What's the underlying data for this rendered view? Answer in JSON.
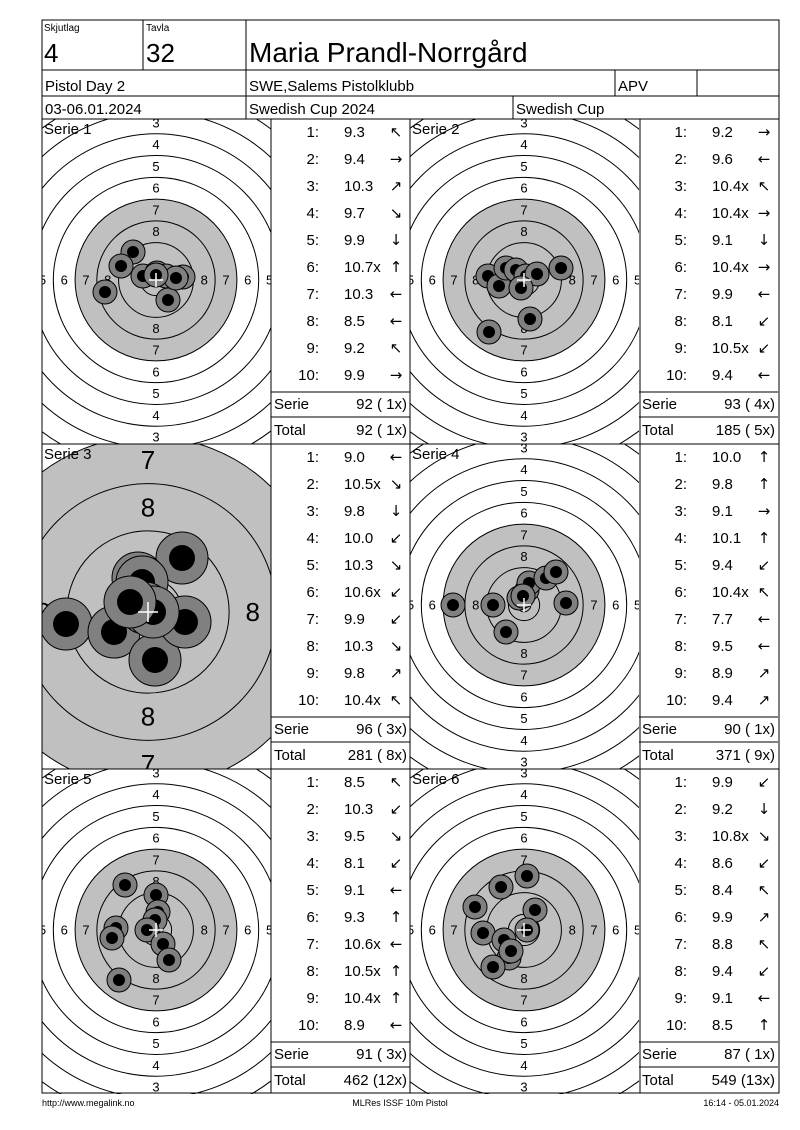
{
  "header": {
    "skjutlag_label": "Skjutlag",
    "skjutlag": "4",
    "tavla_label": "Tavla",
    "tavla": "32",
    "name": "Maria Prandl-Norrgård",
    "event": "Pistol Day 2",
    "club": "SWE,Salems Pistolklubb",
    "class": "APV",
    "date": "03-06.01.2024",
    "competition": "Swedish Cup 2024",
    "competition_short": "Swedish Cup"
  },
  "ring_labels": [
    "3",
    "4",
    "5",
    "6",
    "7",
    "8"
  ],
  "series": [
    {
      "label": "Serie 1",
      "shots": [
        {
          "no": "1:",
          "score": "9.3",
          "dir": "↖"
        },
        {
          "no": "2:",
          "score": "9.4",
          "dir": "→"
        },
        {
          "no": "3:",
          "score": "10.3",
          "dir": "↗"
        },
        {
          "no": "4:",
          "score": "9.7",
          "dir": "↘"
        },
        {
          "no": "5:",
          "score": "9.9",
          "dir": "↓"
        },
        {
          "no": "6:",
          "score": "10.7x",
          "dir": "↑"
        },
        {
          "no": "7:",
          "score": "10.3",
          "dir": "←"
        },
        {
          "no": "8:",
          "score": "8.5",
          "dir": "←"
        },
        {
          "no": "9:",
          "score": "9.2",
          "dir": "↖"
        },
        {
          "no": "10:",
          "score": "9.9",
          "dir": "→"
        }
      ],
      "serie_label": "Serie",
      "serie_score": "92 ( 1x)",
      "total_label": "Total",
      "total_score": "92 ( 1x)"
    },
    {
      "label": "Serie 2",
      "shots": [
        {
          "no": "1:",
          "score": "9.2",
          "dir": "→"
        },
        {
          "no": "2:",
          "score": "9.6",
          "dir": "←"
        },
        {
          "no": "3:",
          "score": "10.4x",
          "dir": "↖"
        },
        {
          "no": "4:",
          "score": "10.4x",
          "dir": "→"
        },
        {
          "no": "5:",
          "score": "9.1",
          "dir": "↓"
        },
        {
          "no": "6:",
          "score": "10.4x",
          "dir": "→"
        },
        {
          "no": "7:",
          "score": "9.9",
          "dir": "←"
        },
        {
          "no": "8:",
          "score": "8.1",
          "dir": "↙"
        },
        {
          "no": "9:",
          "score": "10.5x",
          "dir": "↙"
        },
        {
          "no": "10:",
          "score": "9.4",
          "dir": "←"
        }
      ],
      "serie_label": "Serie",
      "serie_score": "93 ( 4x)",
      "total_label": "Total",
      "total_score": "185 ( 5x)"
    },
    {
      "label": "Serie 3",
      "shots": [
        {
          "no": "1:",
          "score": "9.0",
          "dir": "←"
        },
        {
          "no": "2:",
          "score": "10.5x",
          "dir": "↘"
        },
        {
          "no": "3:",
          "score": "9.8",
          "dir": "↓"
        },
        {
          "no": "4:",
          "score": "10.0",
          "dir": "↙"
        },
        {
          "no": "5:",
          "score": "10.3",
          "dir": "↘"
        },
        {
          "no": "6:",
          "score": "10.6x",
          "dir": "↙"
        },
        {
          "no": "7:",
          "score": "9.9",
          "dir": "↙"
        },
        {
          "no": "8:",
          "score": "10.3",
          "dir": "↘"
        },
        {
          "no": "9:",
          "score": "9.8",
          "dir": "↗"
        },
        {
          "no": "10:",
          "score": "10.4x",
          "dir": "↖"
        }
      ],
      "serie_label": "Serie",
      "serie_score": "96 ( 3x)",
      "total_label": "Total",
      "total_score": "281 ( 8x)"
    },
    {
      "label": "Serie 4",
      "shots": [
        {
          "no": "1:",
          "score": "10.0",
          "dir": "↑"
        },
        {
          "no": "2:",
          "score": "9.8",
          "dir": "↑"
        },
        {
          "no": "3:",
          "score": "9.1",
          "dir": "→"
        },
        {
          "no": "4:",
          "score": "10.1",
          "dir": "↑"
        },
        {
          "no": "5:",
          "score": "9.4",
          "dir": "↙"
        },
        {
          "no": "6:",
          "score": "10.4x",
          "dir": "↖"
        },
        {
          "no": "7:",
          "score": "7.7",
          "dir": "←"
        },
        {
          "no": "8:",
          "score": "9.5",
          "dir": "←"
        },
        {
          "no": "9:",
          "score": "8.9",
          "dir": "↗"
        },
        {
          "no": "10:",
          "score": "9.4",
          "dir": "↗"
        }
      ],
      "serie_label": "Serie",
      "serie_score": "90 ( 1x)",
      "total_label": "Total",
      "total_score": "371 ( 9x)"
    },
    {
      "label": "Serie 5",
      "shots": [
        {
          "no": "1:",
          "score": "8.5",
          "dir": "↖"
        },
        {
          "no": "2:",
          "score": "10.3",
          "dir": "↙"
        },
        {
          "no": "3:",
          "score": "9.5",
          "dir": "↘"
        },
        {
          "no": "4:",
          "score": "8.1",
          "dir": "↙"
        },
        {
          "no": "5:",
          "score": "9.1",
          "dir": "←"
        },
        {
          "no": "6:",
          "score": "9.3",
          "dir": "↑"
        },
        {
          "no": "7:",
          "score": "10.6x",
          "dir": "←"
        },
        {
          "no": "8:",
          "score": "10.5x",
          "dir": "↑"
        },
        {
          "no": "9:",
          "score": "10.4x",
          "dir": "↑"
        },
        {
          "no": "10:",
          "score": "8.9",
          "dir": "←"
        }
      ],
      "serie_label": "Serie",
      "serie_score": "91 ( 3x)",
      "total_label": "Total",
      "total_score": "462 (12x)"
    },
    {
      "label": "Serie 6",
      "shots": [
        {
          "no": "1:",
          "score": "9.9",
          "dir": "↙"
        },
        {
          "no": "2:",
          "score": "9.2",
          "dir": "↓"
        },
        {
          "no": "3:",
          "score": "10.8x",
          "dir": "↘"
        },
        {
          "no": "4:",
          "score": "8.6",
          "dir": "↙"
        },
        {
          "no": "5:",
          "score": "8.4",
          "dir": "↖"
        },
        {
          "no": "6:",
          "score": "9.9",
          "dir": "↗"
        },
        {
          "no": "7:",
          "score": "8.8",
          "dir": "↖"
        },
        {
          "no": "8:",
          "score": "9.4",
          "dir": "↙"
        },
        {
          "no": "9:",
          "score": "9.1",
          "dir": "←"
        },
        {
          "no": "10:",
          "score": "8.5",
          "dir": "↑"
        }
      ],
      "serie_label": "Serie",
      "serie_score": "87 ( 1x)",
      "total_label": "Total",
      "total_score": "549 (13x)"
    }
  ],
  "footer": {
    "url": "http://www.megalink.no",
    "software": "MLRes ISSF 10m Pistol",
    "timestamp": "16:14 - 05.01.2024"
  }
}
